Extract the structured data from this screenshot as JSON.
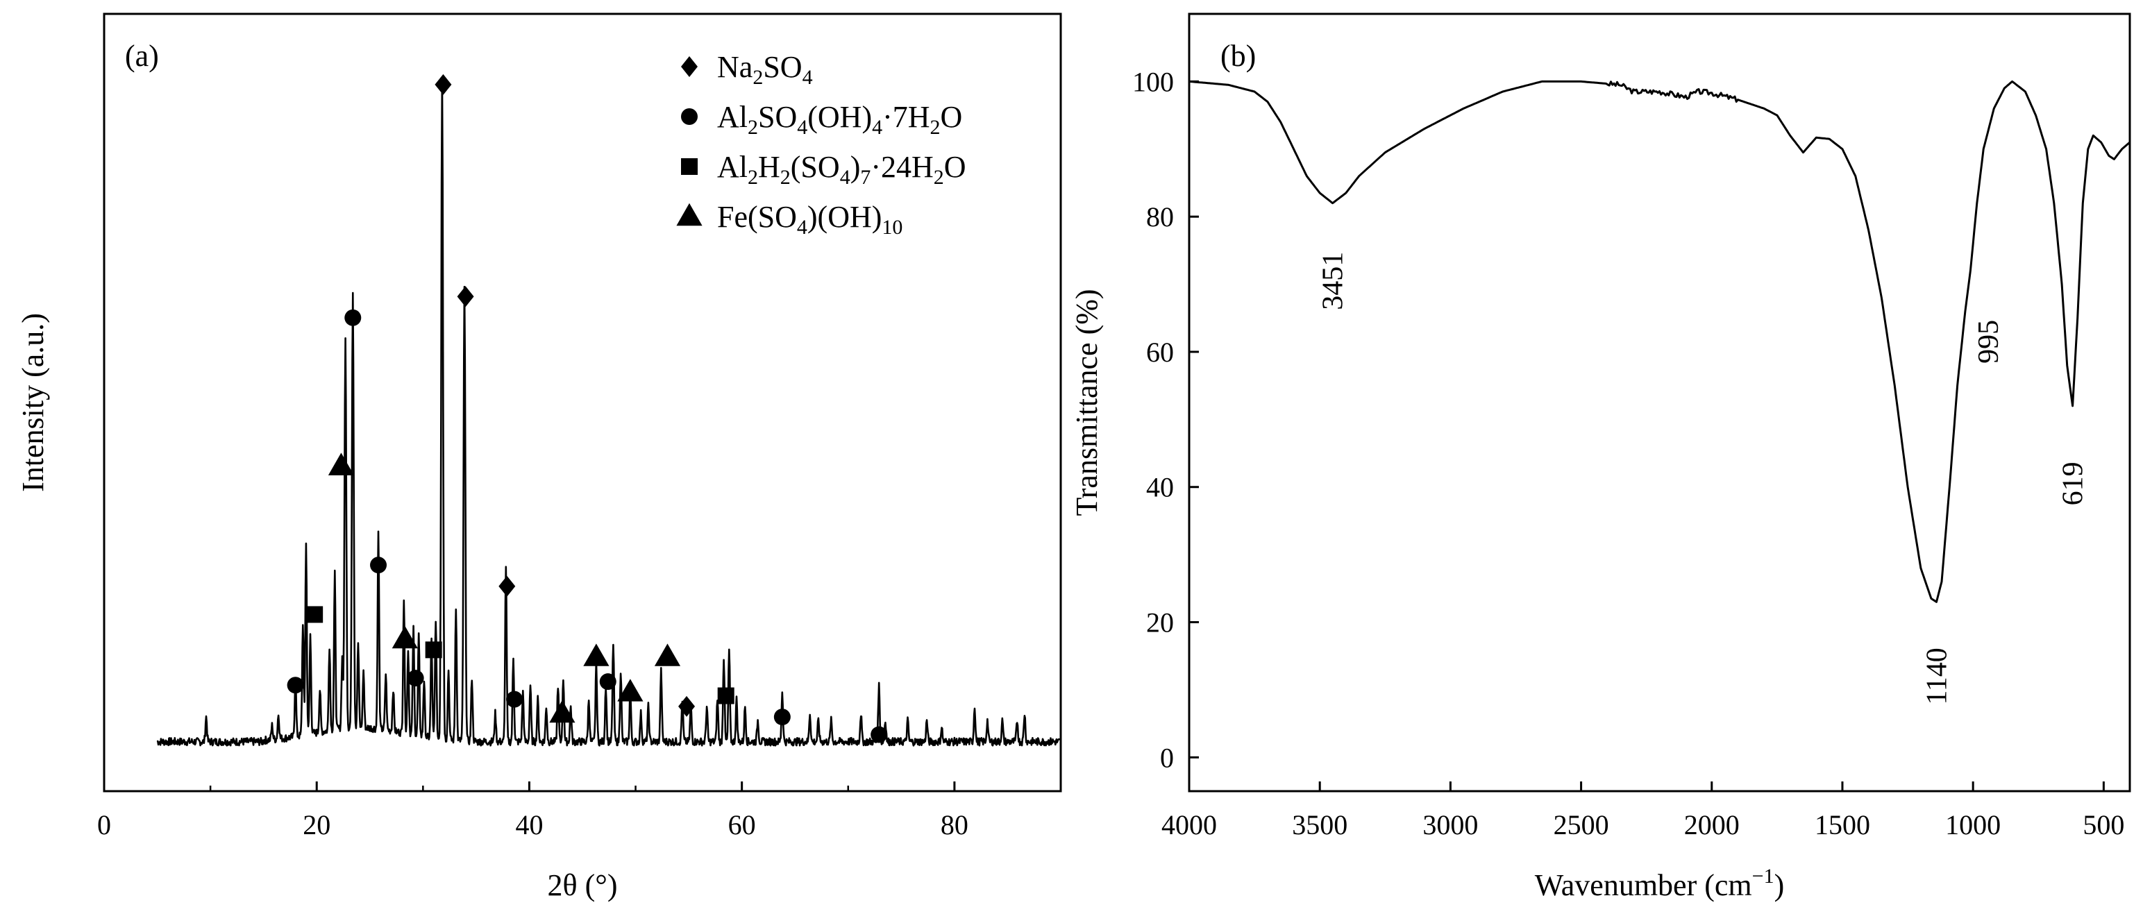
{
  "chart_data": [
    {
      "type": "line",
      "panel_label": "(a)",
      "xlabel": "2θ (°)",
      "ylabel": "Intensity (a.u.)",
      "xlim": [
        0,
        90
      ],
      "ylim": [
        0,
        110
      ],
      "xticks": [
        "0",
        "20",
        "40",
        "60",
        "80"
      ],
      "baseline": 7,
      "peaks": [
        [
          9.6,
          3.5
        ],
        [
          15.8,
          2
        ],
        [
          16.4,
          3.5
        ],
        [
          18.0,
          8
        ],
        [
          18.7,
          16
        ],
        [
          19.0,
          27
        ],
        [
          19.4,
          14
        ],
        [
          20.3,
          6
        ],
        [
          21.2,
          12
        ],
        [
          21.7,
          22
        ],
        [
          22.4,
          10
        ],
        [
          22.7,
          55
        ],
        [
          23.4,
          62
        ],
        [
          23.9,
          12
        ],
        [
          24.4,
          8
        ],
        [
          25.8,
          28
        ],
        [
          26.5,
          8
        ],
        [
          27.2,
          6
        ],
        [
          28.2,
          19
        ],
        [
          28.6,
          12
        ],
        [
          29.1,
          15
        ],
        [
          29.6,
          14
        ],
        [
          30.1,
          8
        ],
        [
          30.8,
          14
        ],
        [
          31.2,
          17
        ],
        [
          31.8,
          94
        ],
        [
          32.4,
          10
        ],
        [
          33.1,
          19
        ],
        [
          33.9,
          64
        ],
        [
          34.6,
          9
        ],
        [
          36.8,
          4
        ],
        [
          37.8,
          25
        ],
        [
          38.5,
          12
        ],
        [
          39.4,
          7
        ],
        [
          40.1,
          8
        ],
        [
          40.8,
          6
        ],
        [
          41.6,
          5
        ],
        [
          42.7,
          8
        ],
        [
          43.2,
          9
        ],
        [
          43.9,
          5
        ],
        [
          45.6,
          6
        ],
        [
          46.3,
          11
        ],
        [
          47.2,
          8
        ],
        [
          47.9,
          14
        ],
        [
          48.6,
          10
        ],
        [
          49.5,
          7
        ],
        [
          50.5,
          4
        ],
        [
          51.2,
          5
        ],
        [
          52.4,
          10
        ],
        [
          54.4,
          6
        ],
        [
          55.2,
          5
        ],
        [
          56.7,
          5
        ],
        [
          57.7,
          6
        ],
        [
          58.3,
          12
        ],
        [
          58.8,
          13
        ],
        [
          59.5,
          6
        ],
        [
          60.3,
          5
        ],
        [
          61.5,
          3
        ],
        [
          63.8,
          7
        ],
        [
          66.4,
          4
        ],
        [
          67.2,
          3
        ],
        [
          68.4,
          3
        ],
        [
          71.2,
          4
        ],
        [
          72.9,
          8
        ],
        [
          73.5,
          3
        ],
        [
          75.6,
          3
        ],
        [
          77.4,
          3
        ],
        [
          78.8,
          2
        ],
        [
          81.9,
          5
        ],
        [
          83.1,
          3
        ],
        [
          84.5,
          3
        ],
        [
          85.9,
          3
        ],
        [
          86.6,
          4
        ]
      ],
      "legend": [
        {
          "marker": "diamond",
          "label": "Na2SO4"
        },
        {
          "marker": "circle",
          "label": "Al2SO4(OH)4·7H2O"
        },
        {
          "marker": "square",
          "label": "Al2H2(SO4)7·24H2O"
        },
        {
          "marker": "triangle",
          "label": "Fe(SO4)(OH)10"
        }
      ],
      "phase_markers": [
        {
          "marker": "diamond",
          "x": 31.9,
          "y": 100
        },
        {
          "marker": "diamond",
          "x": 34.0,
          "y": 70
        },
        {
          "marker": "diamond",
          "x": 37.9,
          "y": 29
        },
        {
          "marker": "diamond",
          "x": 54.8,
          "y": 12
        },
        {
          "marker": "circle",
          "x": 23.4,
          "y": 67
        },
        {
          "marker": "circle",
          "x": 25.8,
          "y": 32
        },
        {
          "marker": "circle",
          "x": 18.0,
          "y": 15
        },
        {
          "marker": "circle",
          "x": 29.3,
          "y": 16
        },
        {
          "marker": "circle",
          "x": 38.6,
          "y": 13
        },
        {
          "marker": "circle",
          "x": 47.4,
          "y": 15.5
        },
        {
          "marker": "circle",
          "x": 63.8,
          "y": 10.5
        },
        {
          "marker": "circle",
          "x": 72.9,
          "y": 8
        },
        {
          "marker": "square",
          "x": 19.8,
          "y": 25
        },
        {
          "marker": "square",
          "x": 31.0,
          "y": 20
        },
        {
          "marker": "square",
          "x": 58.5,
          "y": 13.5
        },
        {
          "marker": "triangle",
          "x": 22.3,
          "y": 46
        },
        {
          "marker": "triangle",
          "x": 28.3,
          "y": 21.5
        },
        {
          "marker": "triangle",
          "x": 43.1,
          "y": 11
        },
        {
          "marker": "triangle",
          "x": 46.3,
          "y": 19
        },
        {
          "marker": "triangle",
          "x": 49.5,
          "y": 14
        },
        {
          "marker": "triangle",
          "x": 53.0,
          "y": 19
        }
      ]
    },
    {
      "type": "line",
      "panel_label": "(b)",
      "xlabel": "Wavenumber (cm−1)",
      "ylabel": "Transmittance (%)",
      "xlim": [
        4000,
        400
      ],
      "ylim": [
        -5,
        110
      ],
      "xticks": [
        "4000",
        "3500",
        "3000",
        "2500",
        "2000",
        "1500",
        "1000",
        "500"
      ],
      "yticks": [
        "0",
        "20",
        "40",
        "60",
        "80",
        "100"
      ],
      "points": [
        [
          4000,
          100
        ],
        [
          3850,
          99.5
        ],
        [
          3750,
          98.5
        ],
        [
          3700,
          97
        ],
        [
          3650,
          94
        ],
        [
          3600,
          90
        ],
        [
          3550,
          86
        ],
        [
          3500,
          83.5
        ],
        [
          3451,
          82
        ],
        [
          3400,
          83.5
        ],
        [
          3350,
          86
        ],
        [
          3250,
          89.5
        ],
        [
          3100,
          93
        ],
        [
          2950,
          96
        ],
        [
          2800,
          98.5
        ],
        [
          2650,
          100
        ],
        [
          2500,
          100
        ],
        [
          2350,
          99.5
        ],
        [
          2300,
          98.5
        ],
        [
          2200,
          98.5
        ],
        [
          2100,
          97.7
        ],
        [
          2050,
          98.5
        ],
        [
          2000,
          98.3
        ],
        [
          1900,
          97.3
        ],
        [
          1800,
          96
        ],
        [
          1750,
          95
        ],
        [
          1700,
          92
        ],
        [
          1650,
          89.5
        ],
        [
          1600,
          91.7
        ],
        [
          1550,
          91.5
        ],
        [
          1500,
          90
        ],
        [
          1450,
          86
        ],
        [
          1400,
          78
        ],
        [
          1350,
          68
        ],
        [
          1300,
          55
        ],
        [
          1250,
          40
        ],
        [
          1200,
          28
        ],
        [
          1160,
          23.5
        ],
        [
          1140,
          23
        ],
        [
          1120,
          26
        ],
        [
          1090,
          40
        ],
        [
          1060,
          55
        ],
        [
          1030,
          66
        ],
        [
          1010,
          72
        ],
        [
          995,
          78
        ],
        [
          985,
          82
        ],
        [
          960,
          90
        ],
        [
          920,
          96
        ],
        [
          880,
          99
        ],
        [
          850,
          100
        ],
        [
          800,
          98.5
        ],
        [
          760,
          95
        ],
        [
          720,
          90
        ],
        [
          690,
          82
        ],
        [
          660,
          70
        ],
        [
          640,
          58
        ],
        [
          619,
          52
        ],
        [
          600,
          65
        ],
        [
          580,
          82
        ],
        [
          560,
          90
        ],
        [
          540,
          92
        ],
        [
          510,
          91
        ],
        [
          480,
          89
        ],
        [
          460,
          88.5
        ],
        [
          430,
          90
        ],
        [
          400,
          91
        ]
      ],
      "annotations": [
        "3451",
        "1140",
        "995",
        "619"
      ]
    }
  ]
}
